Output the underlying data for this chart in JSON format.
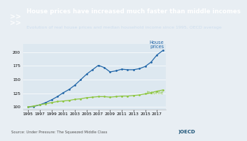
{
  "title": "House prices have increased much faster than middle incomes",
  "subtitle": "Evolution of real house prices and median household income since 1995, OECD average",
  "source": "Source: Under Pressure: The Squeezed Middle Class",
  "years": [
    1995,
    1996,
    1997,
    1998,
    1999,
    2000,
    2001,
    2002,
    2003,
    2004,
    2005,
    2006,
    2007,
    2008,
    2009,
    2010,
    2011,
    2012,
    2013,
    2014,
    2015,
    2016,
    2017,
    2018
  ],
  "house_prices": [
    100,
    101,
    104,
    108,
    113,
    119,
    126,
    132,
    140,
    150,
    160,
    168,
    176,
    172,
    164,
    166,
    169,
    168,
    168,
    170,
    174,
    182,
    195,
    203
  ],
  "income": [
    100,
    102,
    104,
    106,
    108,
    110,
    111,
    112,
    114,
    115,
    117,
    118,
    119,
    119,
    118,
    119,
    120,
    120,
    121,
    122,
    124,
    126,
    129,
    131
  ],
  "house_color": "#2166a8",
  "income_color": "#8dc63f",
  "header_bg": "#1a5276",
  "plot_bg_color": "#dde8f0",
  "title_color": "#ffffff",
  "subtitle_color": "#ccddee",
  "source_color": "#555555",
  "footer_bg": "#e8eef3",
  "ylim": [
    95,
    215
  ],
  "yticks": [
    100,
    125,
    150,
    175,
    200
  ],
  "xticks": [
    1995,
    1997,
    1999,
    2001,
    2003,
    2005,
    2007,
    2009,
    2011,
    2013,
    2015,
    2017
  ],
  "house_label": "House\nprices",
  "income_label": "Income",
  "title_fontsize": 6.2,
  "subtitle_fontsize": 4.5,
  "source_fontsize": 3.8,
  "tick_fontsize": 4.2,
  "label_fontsize": 4.8
}
